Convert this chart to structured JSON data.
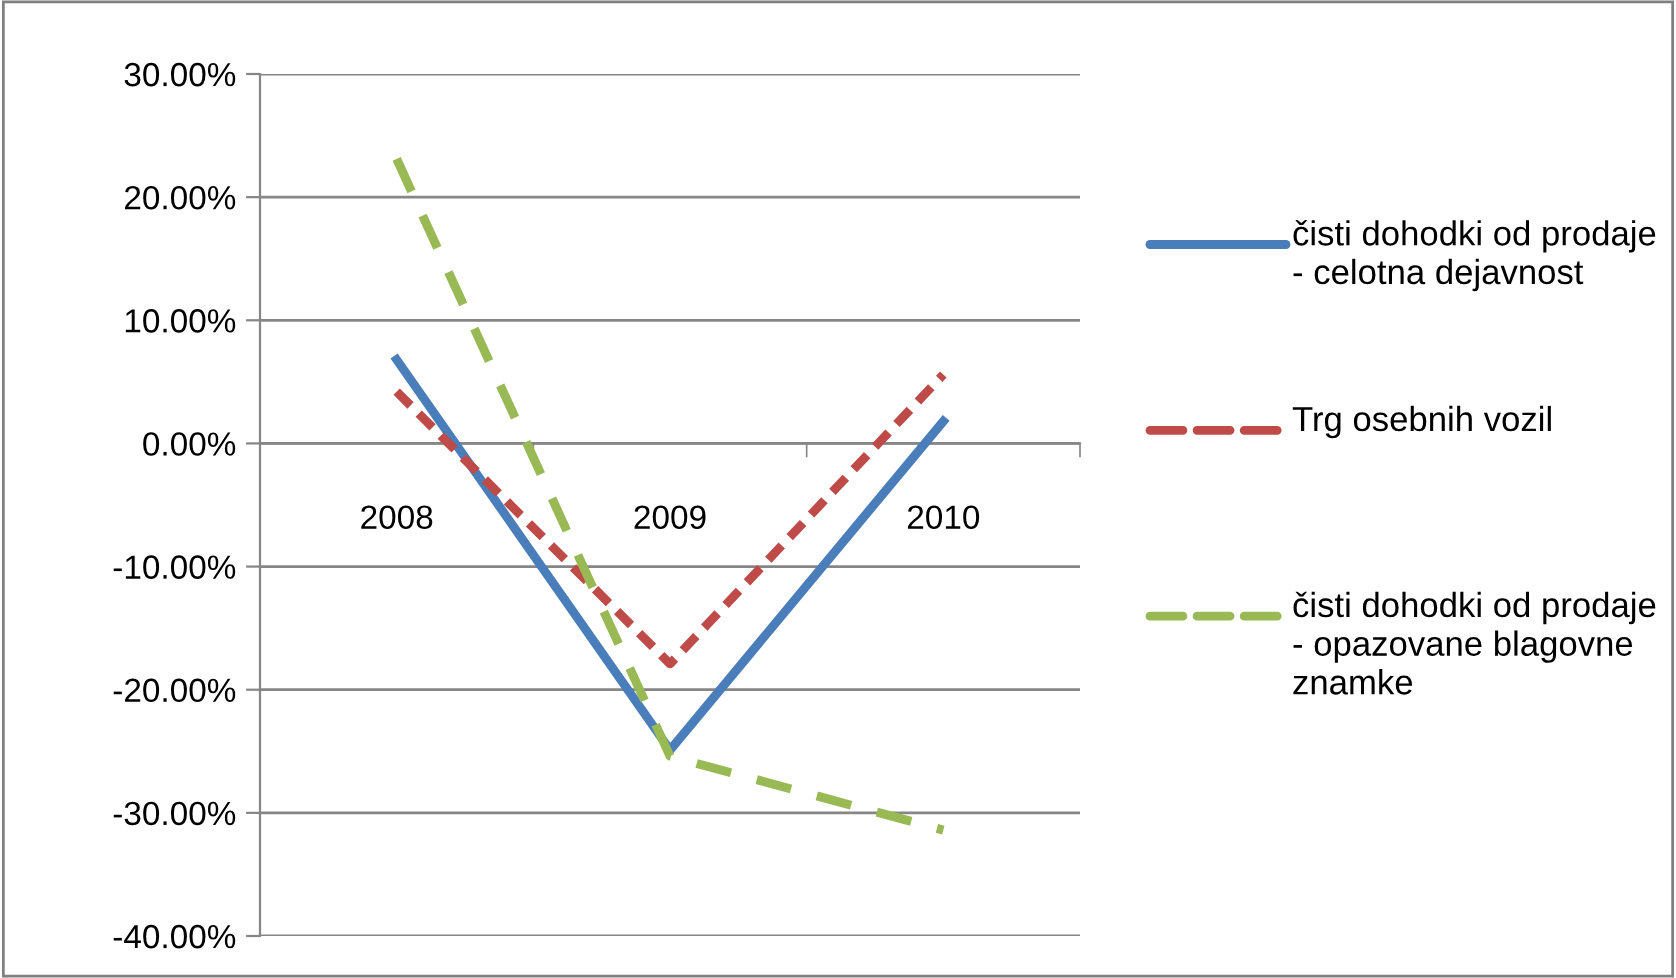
{
  "chart_data": {
    "type": "line",
    "categories": [
      "2008",
      "2009",
      "2010"
    ],
    "series": [
      {
        "name": "čisti dohodki od prodaje - celotna dejavnost",
        "color": "#4a7ebb",
        "line_style": "solid",
        "values": [
          6.8,
          -24.9,
          1.8
        ]
      },
      {
        "name": "Trg osebnih vozil",
        "color": "#be4b48",
        "line_style": "dashed",
        "values": [
          4.2,
          -17.9,
          5.6
        ]
      },
      {
        "name": "čisti dohodki od prodaje - opazovane blagovne znamke",
        "color": "#98b954",
        "line_style": "loosely dashed",
        "values": [
          23.1,
          -25.4,
          -31.4
        ]
      }
    ],
    "ylim": [
      -40,
      30
    ],
    "yticks": [
      {
        "value": -40,
        "label": "-40.00%"
      },
      {
        "value": -30,
        "label": "-30.00%"
      },
      {
        "value": -20,
        "label": "-20.00%"
      },
      {
        "value": -10,
        "label": "-10.00%"
      },
      {
        "value": 0,
        "label": "0.00%"
      },
      {
        "value": 10,
        "label": "10.00%"
      },
      {
        "value": 20,
        "label": "20.00%"
      },
      {
        "value": 30,
        "label": "30.00%"
      }
    ],
    "grid": "y",
    "legend": "right",
    "marker": "none"
  }
}
